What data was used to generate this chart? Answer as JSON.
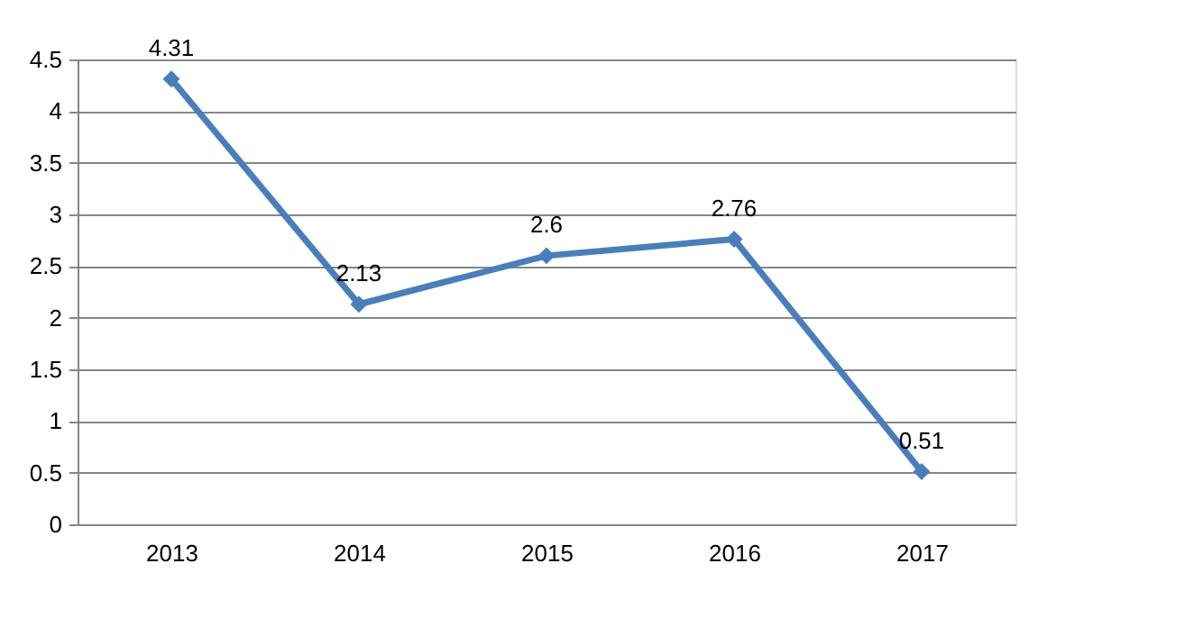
{
  "chart_data": {
    "type": "line",
    "categories": [
      "2013",
      "2014",
      "2015",
      "2016",
      "2017"
    ],
    "series": [
      {
        "color": "#4a7ebb",
        "values": [
          4.31,
          2.13,
          2.6,
          2.76,
          0.51
        ]
      }
    ],
    "ylim": [
      0,
      4.5
    ],
    "yticks": [
      0,
      0.5,
      1,
      1.5,
      2,
      2.5,
      3,
      3.5,
      4,
      4.5
    ],
    "grid": "y",
    "marker": "diamond",
    "line_style": "solid",
    "data_labels": true,
    "legend": false
  }
}
